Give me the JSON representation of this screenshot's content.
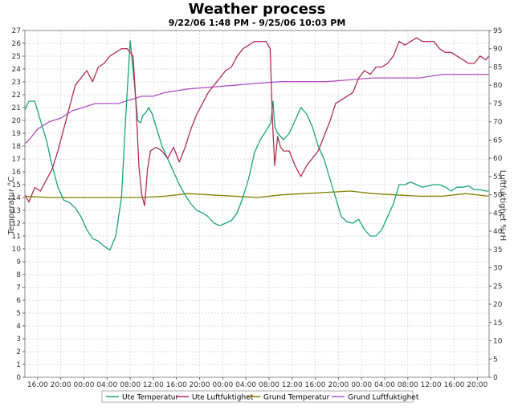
{
  "chart_data": {
    "type": "line",
    "title": "Weather process",
    "subtitle": "9/22/06 1:48 PM - 9/25/06 10:03 PM",
    "ylabel_left": "Temperatur °C",
    "ylabel_right": "Luftfuktighet %rH",
    "ylim_left": [
      0,
      27
    ],
    "ylim_right": [
      0,
      95
    ],
    "y_ticks_left": [
      "0",
      "1",
      "2",
      "3",
      "4",
      "5",
      "6",
      "7",
      "8",
      "9",
      "10",
      "11",
      "12",
      "13",
      "14",
      "15",
      "16",
      "17",
      "18",
      "19",
      "20",
      "21",
      "22",
      "23",
      "24",
      "25",
      "26",
      "27"
    ],
    "y_ticks_right": [
      "0",
      "5",
      "10",
      "15",
      "20",
      "25",
      "30",
      "35",
      "40",
      "45",
      "50",
      "55",
      "60",
      "65",
      "70",
      "75",
      "80",
      "85",
      "90",
      "95"
    ],
    "x_unit": "hours since 9/22/06 12:00",
    "xlim": [
      1.8,
      82.05
    ],
    "x_ticks": [
      {
        "h": 4,
        "label": "16:00"
      },
      {
        "h": 8,
        "label": "20:00"
      },
      {
        "h": 12,
        "label": "00:00"
      },
      {
        "h": 16,
        "label": "04:00"
      },
      {
        "h": 20,
        "label": "08:00"
      },
      {
        "h": 24,
        "label": "12:00"
      },
      {
        "h": 28,
        "label": "16:00"
      },
      {
        "h": 32,
        "label": "20:00"
      },
      {
        "h": 36,
        "label": "00:00"
      },
      {
        "h": 40,
        "label": "04:00"
      },
      {
        "h": 44,
        "label": "08:00"
      },
      {
        "h": 48,
        "label": "12:00"
      },
      {
        "h": 52,
        "label": "16:00"
      },
      {
        "h": 56,
        "label": "20:00"
      },
      {
        "h": 60,
        "label": "00:00"
      },
      {
        "h": 64,
        "label": "04:00"
      },
      {
        "h": 68,
        "label": "08:00"
      },
      {
        "h": 72,
        "label": "12:00"
      },
      {
        "h": 76,
        "label": "16:00"
      },
      {
        "h": 80,
        "label": "20:00"
      }
    ],
    "grid": true,
    "legend_position": "bottom",
    "series": [
      {
        "name": "Ute Temperatur",
        "axis": "left",
        "color": "#1aa37a",
        "x": [
          1.8,
          2.5,
          3.5,
          4.5,
          5.5,
          6.5,
          7.5,
          8.5,
          9.5,
          10.5,
          11.5,
          12.5,
          13.5,
          14.5,
          15.5,
          16.5,
          17.5,
          18.5,
          19.2,
          20,
          20.7,
          21.3,
          21.8,
          22.2,
          22.7,
          23.2,
          23.8,
          24.5,
          25.5,
          26.5,
          27.5,
          28.5,
          29.5,
          30.5,
          31.5,
          32.5,
          33.5,
          34.5,
          35.5,
          36.5,
          37.5,
          38.5,
          39.5,
          40.5,
          41.5,
          42.5,
          43.5,
          44.3,
          44.7,
          45,
          45.5,
          46.5,
          47.5,
          48.5,
          49.5,
          50.5,
          51.5,
          52.5,
          53.5,
          54.5,
          55.5,
          56.5,
          57.5,
          58.5,
          59.5,
          60.5,
          61.5,
          62.5,
          63.5,
          64.5,
          65.5,
          66.5,
          67.5,
          68.5,
          69.5,
          70.5,
          71.5,
          72.5,
          73.5,
          74.5,
          75.5,
          76.5,
          77.5,
          78.5,
          79.5,
          80.5,
          81.5,
          82
        ],
        "y": [
          20.8,
          21.5,
          21.5,
          20,
          18.5,
          16.5,
          14.8,
          13.8,
          13.6,
          13.2,
          12.5,
          11.5,
          10.8,
          10.6,
          10.2,
          9.9,
          11,
          14,
          20,
          26.2,
          23,
          20,
          19.8,
          20.4,
          20.6,
          21,
          20.5,
          19.5,
          18,
          17,
          16,
          15,
          14.2,
          13.5,
          13,
          12.8,
          12.5,
          12,
          11.8,
          12,
          12.2,
          12.8,
          14,
          15.5,
          17.5,
          18.5,
          19.2,
          19.8,
          21.5,
          19.5,
          19,
          18.5,
          19,
          20,
          21,
          20.5,
          19.5,
          18,
          17,
          15.5,
          14,
          12.5,
          12.1,
          12,
          12.3,
          11.5,
          11,
          11,
          11.5,
          12.5,
          13.5,
          15,
          15,
          15.2,
          15,
          14.8,
          14.9,
          15,
          15,
          14.8,
          14.5,
          14.8,
          14.8,
          14.9,
          14.6,
          14.6,
          14.5,
          14.5
        ]
      },
      {
        "name": "Ute Luftfuktighet",
        "axis": "right",
        "color": "#b03050",
        "x": [
          1.8,
          2.5,
          3.5,
          4.5,
          5.5,
          6.5,
          7.5,
          8.5,
          9.5,
          10.5,
          11.5,
          12.5,
          13.5,
          14.5,
          15.5,
          16.5,
          17.5,
          18.5,
          19.5,
          20.5,
          21,
          21.5,
          22,
          22.5,
          23,
          23.5,
          24.5,
          25.5,
          26.5,
          27.5,
          28.5,
          29.5,
          30.5,
          31.5,
          32.5,
          33.5,
          34.5,
          35.5,
          36.5,
          37.5,
          38.5,
          39.5,
          40.5,
          41.5,
          42.5,
          43.5,
          44.2,
          44.6,
          45,
          45.5,
          46,
          46.5,
          47.5,
          48.5,
          49.5,
          50.5,
          51.5,
          52.5,
          53.5,
          54.5,
          55.5,
          56.5,
          57.5,
          58.5,
          59.5,
          60.5,
          61.5,
          62.5,
          63.5,
          64.5,
          65.5,
          66.5,
          67.5,
          68.5,
          69.5,
          70.5,
          71.5,
          72.5,
          73.5,
          74.5,
          75.5,
          76.5,
          77.5,
          78.5,
          79.5,
          80.5,
          81.5,
          82
        ],
        "y": [
          50,
          48,
          52,
          51,
          54,
          57,
          62,
          68,
          74,
          80,
          82,
          84,
          81,
          85,
          86,
          88,
          89,
          90,
          90,
          88,
          75,
          58,
          50,
          47,
          57,
          62,
          63,
          62,
          60,
          63,
          59,
          63,
          68,
          72,
          75,
          78,
          80,
          82,
          84,
          85,
          88,
          90,
          91,
          92,
          92,
          92,
          90,
          70,
          58,
          66,
          63,
          62,
          62,
          58,
          55,
          58,
          60,
          62,
          66,
          70,
          75,
          76,
          77,
          78,
          82,
          84,
          83,
          85,
          85,
          86,
          88,
          92,
          91,
          92,
          93,
          92,
          92,
          92,
          90,
          89,
          89,
          88,
          87,
          86,
          86,
          88,
          87,
          88
        ]
      },
      {
        "name": "Grund Temperatur",
        "axis": "left",
        "color": "#808000",
        "x": [
          1.8,
          6,
          10,
          14,
          18,
          22,
          26,
          30,
          34,
          38,
          42,
          46,
          50,
          54,
          58,
          62,
          66,
          70,
          74,
          78,
          82
        ],
        "y": [
          14.1,
          14.0,
          14.0,
          14.0,
          14.0,
          14.0,
          14.1,
          14.3,
          14.2,
          14.1,
          14.0,
          14.2,
          14.3,
          14.4,
          14.5,
          14.3,
          14.2,
          14.1,
          14.1,
          14.3,
          14.1
        ]
      },
      {
        "name": "Grund Luftfuktighet",
        "axis": "right",
        "color": "#b050c8",
        "x": [
          1.8,
          2.5,
          4,
          6,
          8,
          10,
          12,
          14,
          16,
          18,
          20,
          22,
          24,
          26,
          28,
          30,
          34,
          38,
          42,
          46,
          50,
          54,
          58,
          62,
          66,
          70,
          74,
          78,
          82
        ],
        "y": [
          64,
          65,
          68,
          70,
          71,
          73,
          74,
          75,
          75,
          75,
          76,
          77,
          77,
          78,
          78.5,
          79,
          79.5,
          80,
          80.5,
          81,
          81,
          81,
          81.5,
          82,
          82,
          82,
          83,
          83,
          83
        ]
      }
    ]
  }
}
